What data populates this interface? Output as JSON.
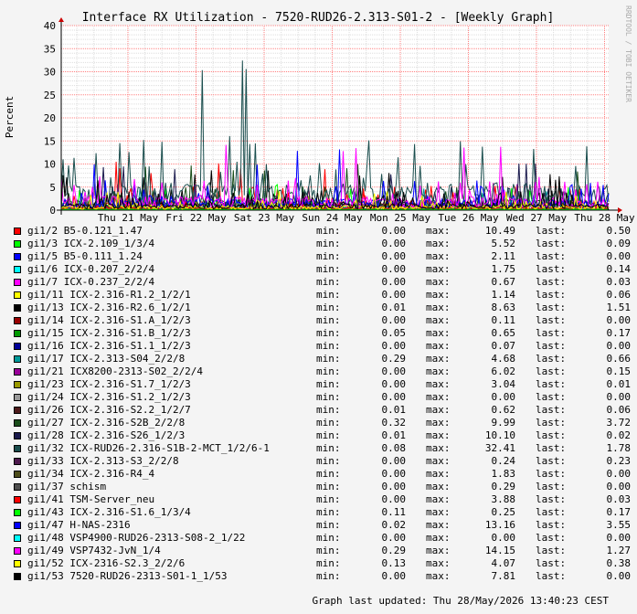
{
  "chart_data": {
    "type": "line",
    "title": "Interface RX Utilization - 7520-RUD26-2.313-S01-2 - [Weekly Graph]",
    "ylabel": "Percent",
    "xlabel": "",
    "ylim": [
      0,
      40
    ],
    "yticks": [
      0,
      5,
      10,
      15,
      20,
      25,
      30,
      35,
      40
    ],
    "x_tick_labels": [
      "Thu 21 May",
      "Fri 22 May",
      "Sat 23 May",
      "Sun 24 May",
      "Mon 25 May",
      "Tue 26 May",
      "Wed 27 May",
      "Thu 28 May"
    ],
    "watermark": "RRDTOOL / TOBI OETIKER",
    "grid": true,
    "legend_position": "bottom",
    "stat_labels": {
      "min": "min:",
      "max": "max:",
      "last": "last:"
    },
    "series": [
      {
        "name": "gi1/2 B5-0.121_1.47",
        "color": "#ff0000",
        "min": "0.00",
        "max": "10.49",
        "last": "0.50"
      },
      {
        "name": "gi1/3 ICX-2.109_1/3/4",
        "color": "#00ff00",
        "min": "0.00",
        "max": "5.52",
        "last": "0.09"
      },
      {
        "name": "gi1/5 B5-0.111_1.24",
        "color": "#0000ff",
        "min": "0.00",
        "max": "2.11",
        "last": "0.00"
      },
      {
        "name": "gi1/6 ICX-0.207_2/2/4",
        "color": "#00ffff",
        "min": "0.00",
        "max": "1.75",
        "last": "0.14"
      },
      {
        "name": "gi1/7 ICX-0.237_2/2/4",
        "color": "#ff00ff",
        "min": "0.00",
        "max": "0.67",
        "last": "0.03"
      },
      {
        "name": "gi1/11 ICX-2.316-R1.2_1/2/1",
        "color": "#ffff00",
        "min": "0.00",
        "max": "1.14",
        "last": "0.06"
      },
      {
        "name": "gi1/13 ICX-2.316-R2.6_1/2/1",
        "color": "#000000",
        "min": "0.01",
        "max": "8.63",
        "last": "1.51"
      },
      {
        "name": "gi1/14 ICX-2.316-S1.A_1/2/3",
        "color": "#990000",
        "min": "0.00",
        "max": "0.11",
        "last": "0.00"
      },
      {
        "name": "gi1/15 ICX-2.316-S1.B_1/2/3",
        "color": "#009900",
        "min": "0.05",
        "max": "0.65",
        "last": "0.17"
      },
      {
        "name": "gi1/16 ICX-2.316-S1.1_1/2/3",
        "color": "#000099",
        "min": "0.00",
        "max": "0.07",
        "last": "0.00"
      },
      {
        "name": "gi1/17 ICX-2.313-S04_2/2/8",
        "color": "#009999",
        "min": "0.29",
        "max": "4.68",
        "last": "0.66"
      },
      {
        "name": "gi1/21 ICX8200-2313-S02_2/2/4",
        "color": "#990099",
        "min": "0.00",
        "max": "6.02",
        "last": "0.15"
      },
      {
        "name": "gi1/23 ICX-2.316-S1.7_1/2/3",
        "color": "#999900",
        "min": "0.00",
        "max": "3.04",
        "last": "0.01"
      },
      {
        "name": "gi1/24 ICX-2.316-S1.2_1/2/3",
        "color": "#999999",
        "min": "0.00",
        "max": "0.00",
        "last": "0.00"
      },
      {
        "name": "gi1/26 ICX-2.316-S2.2_1/2/7",
        "color": "#4d1a1a",
        "min": "0.01",
        "max": "0.62",
        "last": "0.06"
      },
      {
        "name": "gi1/27 ICX-2.316-S2B_2/2/8",
        "color": "#1a4d1a",
        "min": "0.32",
        "max": "9.99",
        "last": "3.72"
      },
      {
        "name": "gi1/28 ICX-2.316-S26_1/2/3",
        "color": "#1a1a4d",
        "min": "0.01",
        "max": "10.10",
        "last": "0.02"
      },
      {
        "name": "gi1/32 ICX-RUD26-2.316-S1B-2-MCT_1/2/6-1",
        "color": "#1a4d4d",
        "min": "0.08",
        "max": "32.41",
        "last": "1.78"
      },
      {
        "name": "gi1/33 ICX-2.313-S3_2/2/8",
        "color": "#4d1a4d",
        "min": "0.00",
        "max": "0.24",
        "last": "0.23"
      },
      {
        "name": "gi1/34 ICX-2.316-R4_4",
        "color": "#4d4d1a",
        "min": "0.00",
        "max": "1.83",
        "last": "0.00"
      },
      {
        "name": "gi1/37 schism",
        "color": "#4d4d4d",
        "min": "0.00",
        "max": "0.29",
        "last": "0.00"
      },
      {
        "name": "gi1/41 TSM-Server_neu",
        "color": "#ff0000",
        "min": "0.00",
        "max": "3.88",
        "last": "0.03"
      },
      {
        "name": "gi1/43 ICX-2.316-S1.6_1/3/4",
        "color": "#00ff00",
        "min": "0.11",
        "max": "0.25",
        "last": "0.17"
      },
      {
        "name": "gi1/47 H-NAS-2316",
        "color": "#0000ff",
        "min": "0.02",
        "max": "13.16",
        "last": "3.55"
      },
      {
        "name": "gi1/48 VSP4900-RUD26-2313-S08-2_1/22",
        "color": "#00ffff",
        "min": "0.00",
        "max": "0.00",
        "last": "0.00"
      },
      {
        "name": "gi1/49 VSP7432-JvN_1/4",
        "color": "#ff00ff",
        "min": "0.29",
        "max": "14.15",
        "last": "1.27"
      },
      {
        "name": "gi1/52 ICX-2316-S2.3_2/2/6",
        "color": "#ffff00",
        "min": "0.13",
        "max": "4.07",
        "last": "0.38"
      },
      {
        "name": "gi1/53 7520-RUD26-2313-S01-1_1/53",
        "color": "#000000",
        "min": "0.00",
        "max": "7.81",
        "last": "0.00"
      }
    ]
  },
  "footer": "Graph last updated: Thu 28/May/2026 13:40:23 CEST"
}
